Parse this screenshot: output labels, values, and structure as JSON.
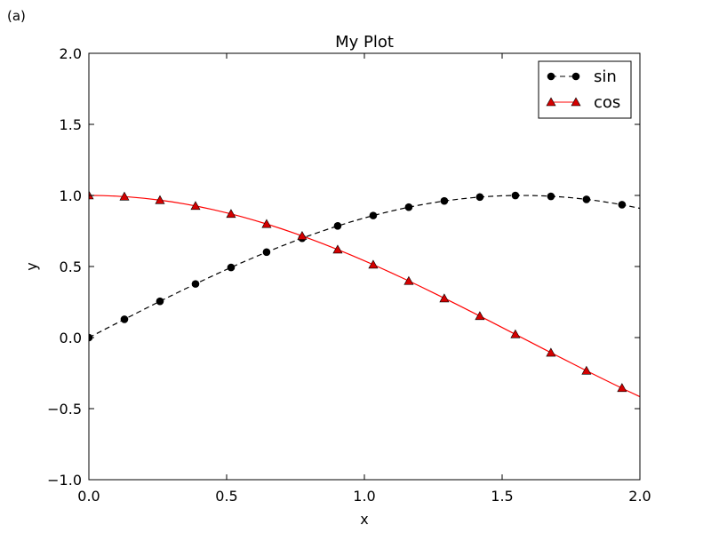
{
  "panel_label": "(a)",
  "chart_data": {
    "type": "line",
    "title": "My Plot",
    "xlabel": "x",
    "ylabel": "y",
    "xlim": [
      0.0,
      2.0
    ],
    "ylim": [
      -1.0,
      2.0
    ],
    "xticks": [
      0.0,
      0.5,
      1.0,
      1.5,
      2.0
    ],
    "xtick_labels": [
      "0.0",
      "0.5",
      "1.0",
      "1.5",
      "2.0"
    ],
    "yticks": [
      -1.0,
      -0.5,
      0.0,
      0.5,
      1.0,
      1.5,
      2.0
    ],
    "ytick_labels": [
      "−1.0",
      "−0.5",
      "0.0",
      "0.5",
      "1.0",
      "1.5",
      "2.0"
    ],
    "grid": false,
    "legend_position": "top-right",
    "series": [
      {
        "name": "sin",
        "color": "#000000",
        "linestyle": "dashed",
        "marker": "circle",
        "line_x": [
          0.0,
          0.05,
          0.1,
          0.15,
          0.2,
          0.25,
          0.3,
          0.35,
          0.4,
          0.45,
          0.5,
          0.55,
          0.6,
          0.65,
          0.7,
          0.75,
          0.8,
          0.85,
          0.9,
          0.95,
          1.0,
          1.05,
          1.1,
          1.15,
          1.2,
          1.25,
          1.3,
          1.35,
          1.4,
          1.45,
          1.5,
          1.55,
          1.6,
          1.65,
          1.7,
          1.75,
          1.8,
          1.85,
          1.9,
          1.95,
          2.0
        ],
        "line_y": [
          0.0,
          0.05,
          0.0998,
          0.1494,
          0.1987,
          0.2474,
          0.2955,
          0.3429,
          0.3894,
          0.435,
          0.4794,
          0.5227,
          0.5646,
          0.6052,
          0.6442,
          0.6816,
          0.7174,
          0.7513,
          0.7833,
          0.8134,
          0.8415,
          0.8674,
          0.8912,
          0.9128,
          0.932,
          0.949,
          0.9636,
          0.9757,
          0.9854,
          0.9927,
          0.9975,
          0.9998,
          0.9996,
          0.9969,
          0.9917,
          0.984,
          0.9738,
          0.9613,
          0.9463,
          0.929,
          0.9093
        ],
        "marker_x": [
          0.0,
          0.129,
          0.258,
          0.387,
          0.516,
          0.645,
          0.774,
          0.903,
          1.032,
          1.161,
          1.29,
          1.419,
          1.548,
          1.677,
          1.806,
          1.935
        ],
        "marker_y": [
          0.0,
          0.1286,
          0.2551,
          0.3774,
          0.4933,
          0.6011,
          0.699,
          0.7853,
          0.8586,
          0.9176,
          0.9614,
          0.9887,
          0.9997,
          0.9936,
          0.9721,
          0.9347
        ]
      },
      {
        "name": "cos",
        "color": "#ff0000",
        "linestyle": "solid",
        "marker": "triangle",
        "line_x": [
          0.0,
          0.05,
          0.1,
          0.15,
          0.2,
          0.25,
          0.3,
          0.35,
          0.4,
          0.45,
          0.5,
          0.55,
          0.6,
          0.65,
          0.7,
          0.75,
          0.8,
          0.85,
          0.9,
          0.95,
          1.0,
          1.05,
          1.1,
          1.15,
          1.2,
          1.25,
          1.3,
          1.35,
          1.4,
          1.45,
          1.5,
          1.55,
          1.6,
          1.65,
          1.7,
          1.75,
          1.8,
          1.85,
          1.9,
          1.95,
          2.0
        ],
        "line_y": [
          1.0,
          0.9988,
          0.995,
          0.9888,
          0.9801,
          0.9689,
          0.9553,
          0.9394,
          0.9211,
          0.9004,
          0.8776,
          0.8525,
          0.8253,
          0.7961,
          0.7648,
          0.7317,
          0.6967,
          0.66,
          0.6216,
          0.5817,
          0.5403,
          0.4976,
          0.4536,
          0.4085,
          0.3624,
          0.3153,
          0.2675,
          0.219,
          0.17,
          0.1205,
          0.0707,
          0.0208,
          -0.0292,
          -0.0791,
          -0.1288,
          -0.1782,
          -0.2272,
          -0.2756,
          -0.3233,
          -0.3702,
          -0.4161
        ],
        "marker_x": [
          0.0,
          0.129,
          0.258,
          0.387,
          0.516,
          0.645,
          0.774,
          0.903,
          1.032,
          1.161,
          1.29,
          1.419,
          1.548,
          1.677,
          1.806,
          1.935
        ],
        "marker_y": [
          1.0,
          0.9917,
          0.9669,
          0.926,
          0.8698,
          0.7991,
          0.715,
          0.619,
          0.5127,
          0.3976,
          0.2753,
          0.1509,
          0.0228,
          -0.1065,
          -0.2335,
          -0.3549
        ]
      }
    ]
  }
}
